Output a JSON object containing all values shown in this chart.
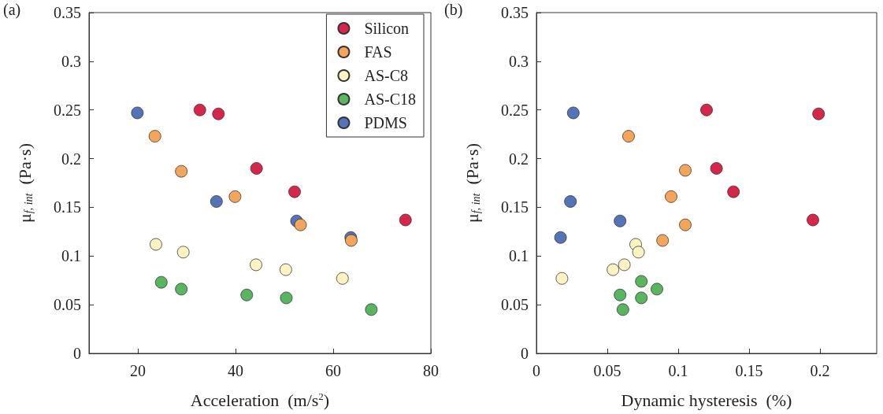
{
  "chart_data": [
    {
      "type": "scatter",
      "annotations": [
        "(a)"
      ],
      "xlabel": "Acceleration  (m/s$^{2}$)",
      "ylabel": "μ$_{f, int}$  (Pa·s)",
      "xlim": [
        10,
        80
      ],
      "xticks": [
        20,
        40,
        60,
        80
      ],
      "ylim": [
        0,
        0.35
      ],
      "yticks": [
        0,
        0.05,
        0.1,
        0.15,
        0.2,
        0.25,
        0.3,
        0.35
      ],
      "marker": "circle",
      "grid": false,
      "legend": "top right",
      "series": [
        {
          "name": "Silicon",
          "color": "#d7264a",
          "x": [
            32.7,
            36.5,
            44.3,
            52.1,
            74.8
          ],
          "values": [
            0.25,
            0.246,
            0.19,
            0.166,
            0.137
          ]
        },
        {
          "name": "FAS",
          "color": "#f4a55a",
          "x": [
            23.5,
            28.9,
            39.9,
            53.3,
            63.7
          ],
          "values": [
            0.223,
            0.187,
            0.161,
            0.132,
            0.116
          ]
        },
        {
          "name": "AS-C8",
          "color": "#fbf3c2",
          "x": [
            23.7,
            29.3,
            44.2,
            50.3,
            61.9
          ],
          "values": [
            0.112,
            0.104,
            0.091,
            0.086,
            0.077
          ]
        },
        {
          "name": "AS-C18",
          "color": "#57b65f",
          "x": [
            24.8,
            28.9,
            42.3,
            50.4,
            67.8
          ],
          "values": [
            0.073,
            0.066,
            0.06,
            0.057,
            0.045
          ]
        },
        {
          "name": "PDMS",
          "color": "#5573b9",
          "x": [
            19.9,
            36.1,
            52.5,
            63.6
          ],
          "values": [
            0.247,
            0.156,
            0.136,
            0.119
          ]
        }
      ]
    },
    {
      "type": "scatter",
      "annotations": [
        "(b)"
      ],
      "xlabel": "Dynamic hysteresis  (%)",
      "ylabel": "μ$_{f, int}$  (Pa·s)",
      "xlim": [
        0,
        0.24
      ],
      "xticks": [
        0,
        0.05,
        0.1,
        0.15,
        0.2
      ],
      "ylim": [
        0,
        0.35
      ],
      "yticks": [
        0,
        0.05,
        0.1,
        0.15,
        0.2,
        0.25,
        0.3,
        0.35
      ],
      "marker": "circle",
      "grid": false,
      "legend": false,
      "series": [
        {
          "color": "#d7264a",
          "x": [
            0.12,
            0.199,
            0.127,
            0.139,
            0.195
          ],
          "values": [
            0.25,
            0.246,
            0.19,
            0.166,
            0.137
          ]
        },
        {
          "color": "#f4a55a",
          "x": [
            0.065,
            0.105,
            0.095,
            0.105,
            0.089
          ],
          "values": [
            0.223,
            0.188,
            0.161,
            0.132,
            0.116
          ]
        },
        {
          "color": "#fbf3c2",
          "x": [
            0.07,
            0.072,
            0.062,
            0.054,
            0.018
          ],
          "values": [
            0.112,
            0.104,
            0.091,
            0.086,
            0.077
          ]
        },
        {
          "color": "#57b65f",
          "x": [
            0.074,
            0.085,
            0.059,
            0.074,
            0.061
          ],
          "values": [
            0.074,
            0.066,
            0.06,
            0.057,
            0.045
          ]
        },
        {
          "color": "#5573b9",
          "x": [
            0.026,
            0.024,
            0.059,
            0.017
          ],
          "values": [
            0.247,
            0.156,
            0.136,
            0.119
          ]
        }
      ]
    }
  ]
}
